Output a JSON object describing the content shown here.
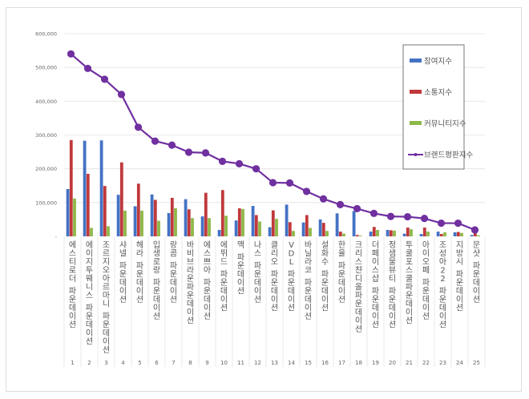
{
  "chart_data": {
    "type": "bar",
    "title": "",
    "xlabel": "",
    "ylabel": "",
    "ylim": [
      0,
      600000
    ],
    "yticks": [
      0,
      100000,
      200000,
      300000,
      400000,
      500000,
      600000
    ],
    "ytick_labels": [
      "-",
      "100,000",
      "200,000",
      "300,000",
      "400,000",
      "500,000",
      "600,000"
    ],
    "grid": true,
    "legend_position": "upper right, inside plot",
    "category_numbers": [
      "1",
      "2",
      "3",
      "4",
      "5",
      "6",
      "7",
      "8",
      "9",
      "10",
      "11",
      "12",
      "13",
      "14",
      "15",
      "16",
      "17",
      "18",
      "19",
      "20",
      "21",
      "22",
      "23",
      "24",
      "25"
    ],
    "categories": [
      "에스티로더 파운데이션",
      "에이지투웨니스 파운데이션",
      "조르지오아르마니 파운데이션",
      "샤넬 파운데이션",
      "헤라 파운데이션",
      "입생로랑 파운데이션",
      "랑콤 파운데이션",
      "바비브라운파운데이션",
      "에스쁘아 파운데이션",
      "에뛰드 파운데이션",
      "맥 파운데이션",
      "나스 파운데이션",
      "클리오 파운데이션",
      "VDL 파운데이션",
      "바닐라코 파운데이션",
      "설화수 파운데이션",
      "한율 파운데이션",
      "크리스챤디올파운데이션",
      "더페이스샵 파운데이션",
      "정샘물뷰티 파운데이션",
      "투쿨포스쿨파운데이션",
      "아이오페 파운데이션",
      "조성아22 파운데이션",
      "지방시 파운데이션",
      "문샷 파운데이션"
    ],
    "series": [
      {
        "name": "참여지수",
        "type": "bar",
        "color": "#4472c4",
        "values": [
          140000,
          283000,
          284000,
          123000,
          89000,
          124000,
          69000,
          110000,
          59000,
          19000,
          47000,
          90000,
          27000,
          94000,
          41000,
          50000,
          68000,
          75000,
          14000,
          19000,
          8000,
          7000,
          14000,
          12000,
          4000
        ]
      },
      {
        "name": "소통지수",
        "type": "bar",
        "color": "#c0393b",
        "values": [
          285000,
          185000,
          149000,
          219000,
          156000,
          108000,
          114000,
          80000,
          129000,
          137000,
          83000,
          63000,
          77000,
          42000,
          63000,
          40000,
          14000,
          4000,
          28000,
          18000,
          26000,
          26000,
          7000,
          13000,
          10000
        ]
      },
      {
        "name": "커뮤니티지수",
        "type": "bar",
        "color": "#8fb84a",
        "values": [
          112000,
          25000,
          30000,
          76000,
          76000,
          46000,
          83000,
          54000,
          54000,
          61000,
          81000,
          44000,
          52000,
          16000,
          25000,
          16000,
          8000,
          2000,
          19000,
          17000,
          21000,
          14000,
          12000,
          10000,
          3000
        ]
      },
      {
        "name": "브랜드평판지수",
        "type": "line",
        "color": "#7030a0",
        "values": [
          540000,
          497000,
          465000,
          420000,
          323000,
          282000,
          270000,
          249000,
          247000,
          222000,
          215000,
          200000,
          159000,
          158000,
          133000,
          111000,
          94000,
          82000,
          68000,
          59000,
          58000,
          53000,
          39000,
          39000,
          19000
        ]
      }
    ]
  }
}
